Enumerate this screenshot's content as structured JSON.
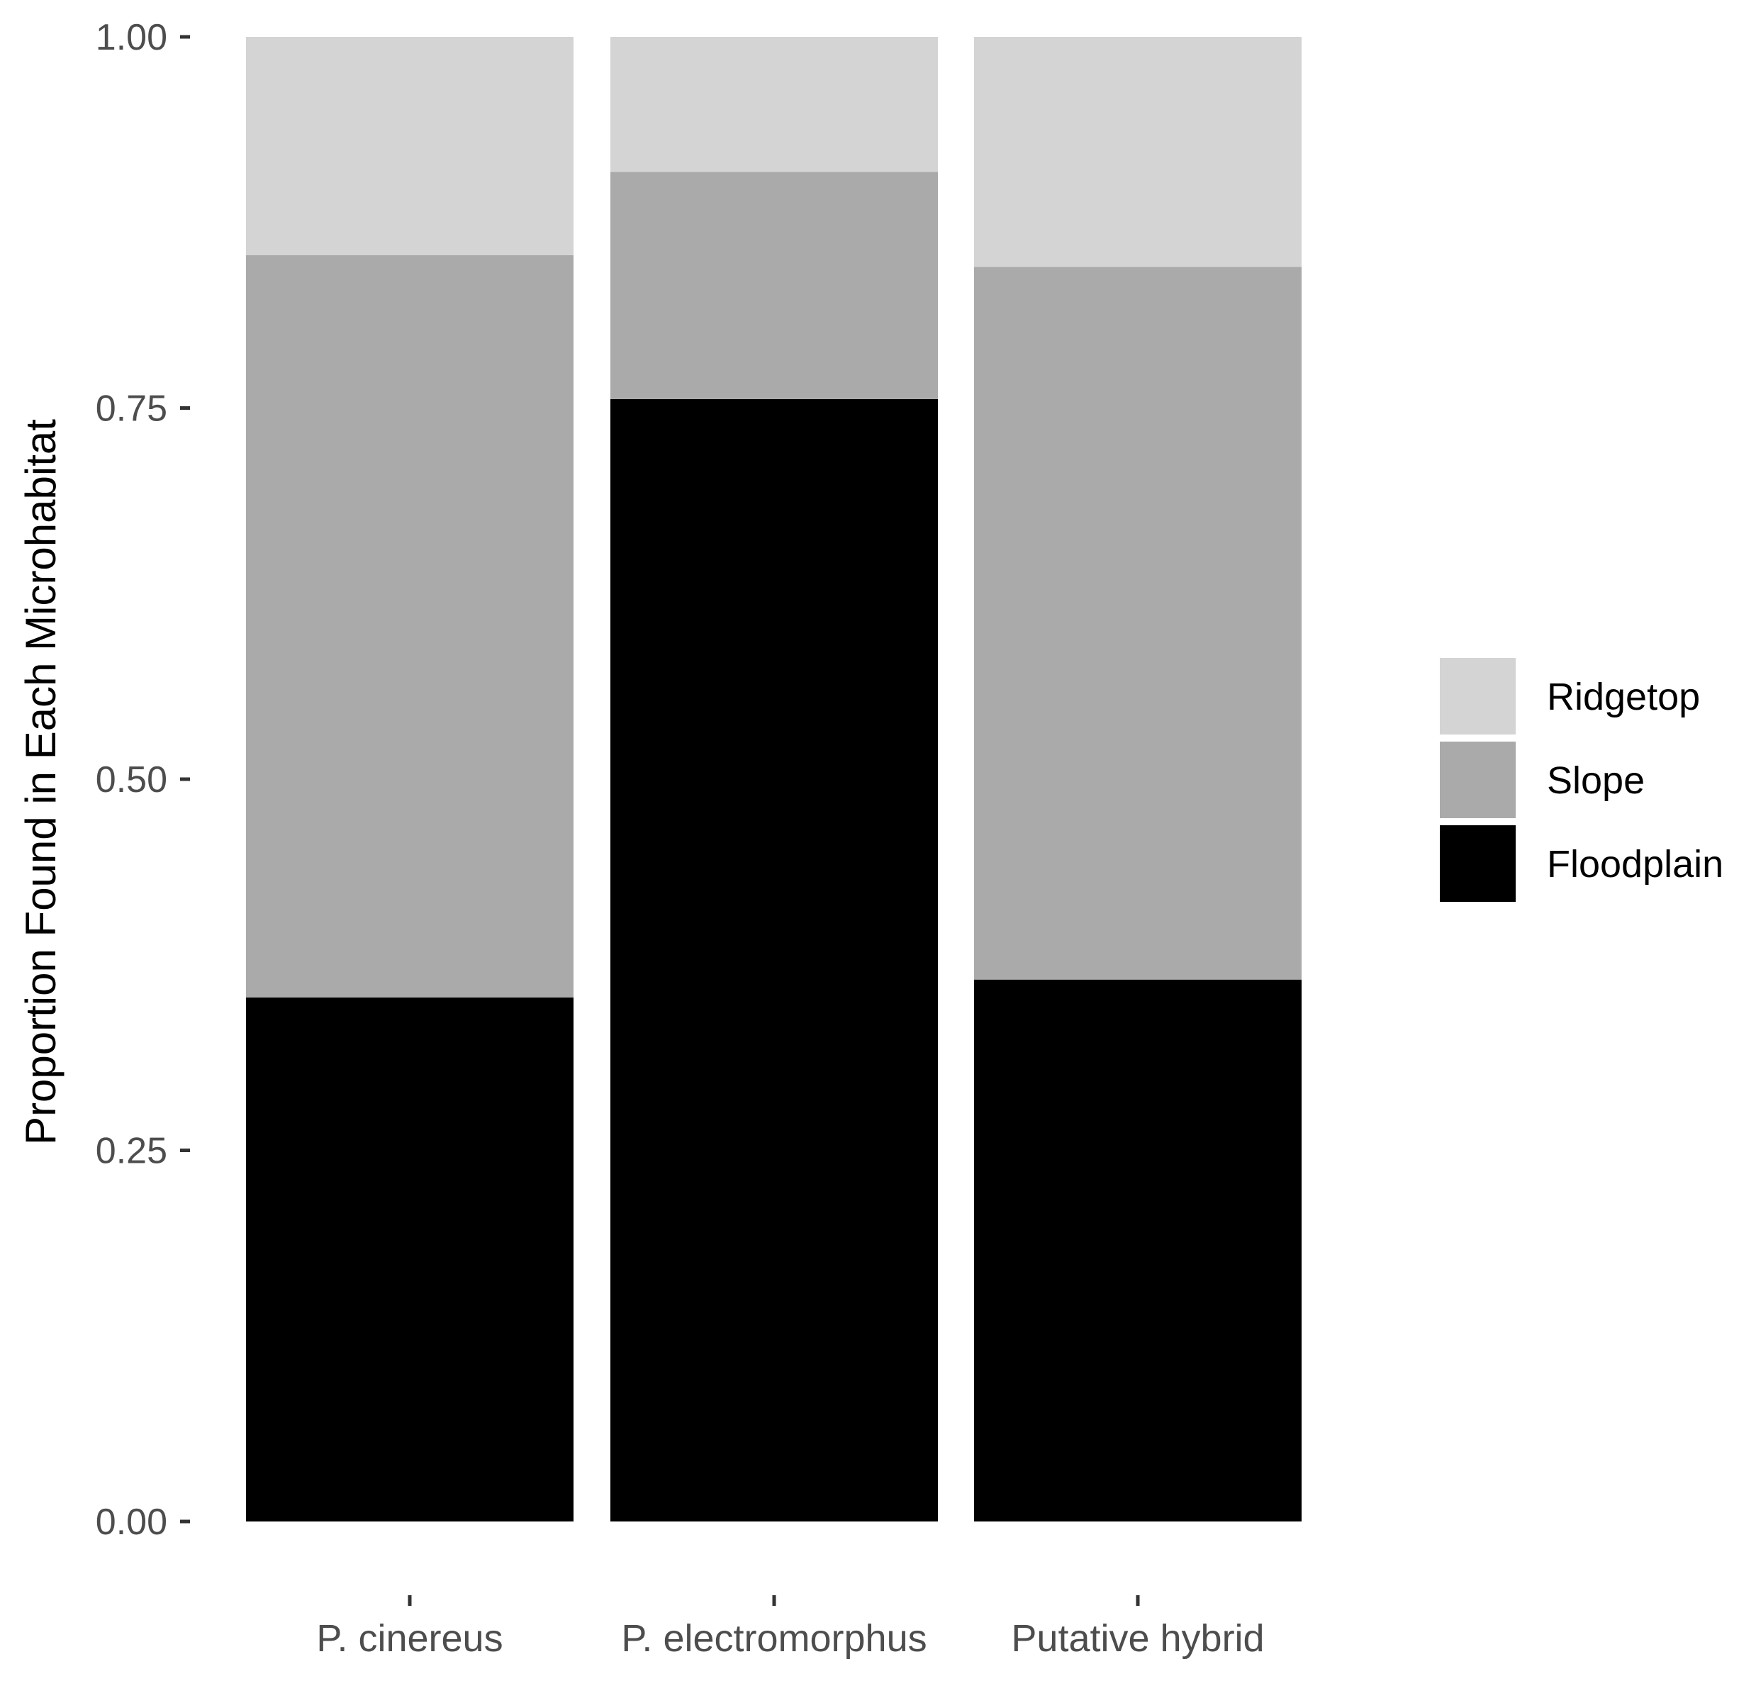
{
  "chart_data": {
    "type": "bar",
    "stacked": true,
    "categories": [
      "P. cinereus",
      "P. electromorphus",
      "Putative hybrid"
    ],
    "series": [
      {
        "name": "Floodplain",
        "values": [
          0.353,
          0.756,
          0.365
        ],
        "color": "#000000"
      },
      {
        "name": "Slope",
        "values": [
          0.5,
          0.153,
          0.48
        ],
        "color": "#aaaaaa"
      },
      {
        "name": "Ridgetop",
        "values": [
          0.147,
          0.091,
          0.155
        ],
        "color": "#d4d4d4"
      }
    ],
    "title": "",
    "xlabel": "",
    "ylabel": "Proportion Found in Each Microhabitat",
    "ylim": [
      0,
      1
    ],
    "yticks": [
      0.0,
      0.25,
      0.5,
      0.75,
      1.0
    ],
    "ytick_labels": [
      "0.00",
      "0.25",
      "0.50",
      "0.75",
      "1.00"
    ],
    "grid": false,
    "legend": {
      "position": "right",
      "order": [
        "Ridgetop",
        "Slope",
        "Floodplain"
      ]
    },
    "colors": {
      "background": "#ffffff",
      "tick_text": "#4d4d4d",
      "axis_title": "#000000",
      "legend_text": "#000000",
      "tick_mark": "#333333"
    }
  }
}
